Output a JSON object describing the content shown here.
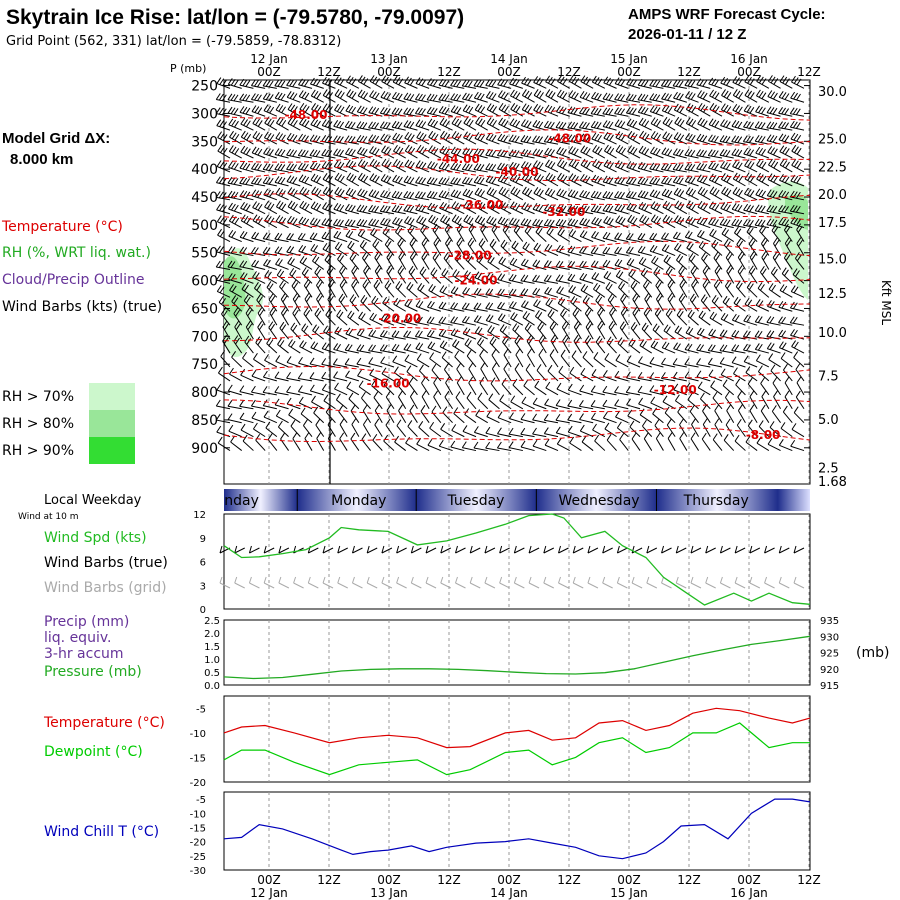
{
  "header": {
    "title": "Skytrain Ice Rise:  lat/lon = (-79.5780, -79.0097)",
    "grid_point": "Grid Point (562, 331) lat/lon = (-79.5859, -78.8312)",
    "cycle_line1": "AMPS WRF Forecast Cycle:",
    "cycle_line2": "2026-01-11 / 12  Z"
  },
  "model_grid": {
    "label": "Model Grid ΔX:",
    "value": "8.000 km"
  },
  "colors": {
    "temperature": "#dd0000",
    "rh": "#22aa22",
    "cloud": "#663399",
    "barbs": "#000000",
    "grid_barbs": "#aaaaaa",
    "wind_speed": "#22bb22",
    "dewpoint": "#00cc00",
    "pressure": "#22aa22",
    "wind_chill": "#0000bb",
    "rh70": "#ccf7cc",
    "rh80": "#99e699",
    "rh90": "#33dd33",
    "day_bar": "#1f2e8c",
    "grid_line": "#999999"
  },
  "time_axis": {
    "dates": [
      "12 Jan",
      "13 Jan",
      "14 Jan",
      "15 Jan",
      "16 Jan"
    ],
    "labels": [
      "00Z",
      "12Z",
      "00Z",
      "12Z",
      "00Z",
      "12Z",
      "00Z",
      "12Z",
      "00Z",
      "12Z"
    ],
    "weekday_label": "Local Weekday",
    "weekdays": [
      "nday",
      "Monday",
      "Tuesday",
      "Wednesday",
      "Thursday"
    ]
  },
  "chart_data": [
    {
      "type": "line",
      "panel": "upper_air",
      "ylabel": "P (mb)",
      "right_label": "Kft MSL",
      "pressure_ticks": [
        250,
        300,
        350,
        400,
        450,
        500,
        550,
        600,
        650,
        700,
        750,
        800,
        850,
        900
      ],
      "height_ticks": [
        {
          "p": 260,
          "label": "30.0"
        },
        {
          "p": 345,
          "label": "25.0"
        },
        {
          "p": 395,
          "label": "22.5"
        },
        {
          "p": 445,
          "label": "20.0"
        },
        {
          "p": 495,
          "label": "17.5"
        },
        {
          "p": 560,
          "label": "15.0"
        },
        {
          "p": 622,
          "label": "12.5"
        },
        {
          "p": 692,
          "label": "10.0"
        },
        {
          "p": 770,
          "label": "7.5"
        },
        {
          "p": 848,
          "label": "5.0"
        },
        {
          "p": 935,
          "label": "2.5"
        },
        {
          "p": 960,
          "label": "1.68"
        }
      ],
      "legend": [
        {
          "label": "Temperature (°C)",
          "color": "#dd0000"
        },
        {
          "label": "RH (%, WRT liq. wat.)",
          "color": "#22aa22"
        },
        {
          "label": "Cloud/Precip Outline",
          "color": "#663399"
        },
        {
          "label": "Wind Barbs (kts) (true)",
          "color": "#000000"
        }
      ],
      "rh_legend": [
        "RH > 70%",
        "RH > 80%",
        "RH > 90%"
      ],
      "isotherm_labels": [
        {
          "text": "-48.00",
          "t": 0.14,
          "p": 303
        },
        {
          "text": "-48.00",
          "t": 0.59,
          "p": 345
        },
        {
          "text": "-44.00",
          "t": 0.4,
          "p": 382
        },
        {
          "text": "-40.00",
          "t": 0.5,
          "p": 405
        },
        {
          "text": "-36.00",
          "t": 0.44,
          "p": 464
        },
        {
          "text": "-32.00",
          "t": 0.58,
          "p": 477
        },
        {
          "text": "-28.00",
          "t": 0.42,
          "p": 555
        },
        {
          "text": "-24.00",
          "t": 0.43,
          "p": 600
        },
        {
          "text": "-20.00",
          "t": 0.3,
          "p": 668
        },
        {
          "text": "-16.00",
          "t": 0.28,
          "p": 785
        },
        {
          "text": "-12.00",
          "t": 0.77,
          "p": 796
        },
        {
          "text": "-8.00",
          "t": 0.92,
          "p": 877
        }
      ]
    },
    {
      "type": "line",
      "panel": "surface_wind",
      "note": "Wind at 10 m",
      "ylim": [
        0,
        12
      ],
      "yticks": [
        0,
        3,
        6,
        9,
        12
      ],
      "legend": [
        "Wind Spd (kts)",
        "Wind Barbs (true)",
        "Wind Barbs (grid)"
      ],
      "t": [
        0,
        0.03,
        0.06,
        0.1,
        0.14,
        0.18,
        0.2,
        0.23,
        0.28,
        0.33,
        0.38,
        0.43,
        0.48,
        0.52,
        0.56,
        0.58,
        0.61,
        0.65,
        0.68,
        0.72,
        0.75,
        0.79,
        0.82,
        0.87,
        0.9,
        0.93,
        0.97,
        1
      ],
      "values": [
        8.0,
        6.5,
        6.6,
        7.0,
        7.5,
        9.0,
        10.3,
        10.0,
        9.8,
        8.1,
        8.6,
        9.6,
        10.7,
        11.8,
        12.0,
        11.5,
        9.0,
        9.8,
        8.0,
        6.5,
        4.0,
        2.0,
        0.5,
        2.0,
        1.0,
        2.0,
        0.8,
        0.6
      ]
    },
    {
      "type": "line",
      "panel": "pressure",
      "legend": [
        "Precip (mm)",
        "liq. equiv.",
        "3-hr accum",
        "Pressure (mb)"
      ],
      "precip_ticks": [
        "2.5",
        "2.0",
        "1.5",
        "1.0",
        "0.5",
        "0.0"
      ],
      "precip_values": [
        2.5,
        2.0,
        1.5,
        1.0,
        0.5,
        0.0
      ],
      "pressure_ticks": [
        "935",
        "930",
        "925",
        "920",
        "915"
      ],
      "pressure_values": [
        935,
        930,
        925,
        920,
        915
      ],
      "right_unit": "(mb)",
      "t": [
        0,
        0.05,
        0.1,
        0.15,
        0.2,
        0.25,
        0.3,
        0.35,
        0.4,
        0.45,
        0.5,
        0.55,
        0.6,
        0.65,
        0.7,
        0.75,
        0.8,
        0.85,
        0.9,
        0.95,
        1
      ],
      "values": [
        917.5,
        917.0,
        917.3,
        918.3,
        919.3,
        919.8,
        920.0,
        920.0,
        919.8,
        919.4,
        918.9,
        918.5,
        918.4,
        918.8,
        920.0,
        922.0,
        924.0,
        925.8,
        927.5,
        928.7,
        930.0
      ]
    },
    {
      "type": "line",
      "panel": "temperature",
      "ylim": [
        -20,
        -2.5
      ],
      "yticks": [
        -5,
        -10,
        -15,
        -20
      ],
      "series": [
        {
          "name": "Temperature (°C)",
          "t": [
            0,
            0.03,
            0.07,
            0.12,
            0.18,
            0.23,
            0.28,
            0.33,
            0.38,
            0.42,
            0.48,
            0.52,
            0.56,
            0.6,
            0.64,
            0.68,
            0.72,
            0.76,
            0.8,
            0.84,
            0.88,
            0.93,
            0.97,
            1
          ],
          "values": [
            -10,
            -8.8,
            -8.5,
            -10.0,
            -12.0,
            -11.0,
            -10.5,
            -11.0,
            -13.0,
            -12.8,
            -10.0,
            -9.5,
            -11.5,
            -11.0,
            -8.0,
            -7.5,
            -9.5,
            -8.5,
            -6.0,
            -5.0,
            -5.5,
            -7.0,
            -8.0,
            -7.0
          ]
        },
        {
          "name": "Dewpoint (°C)",
          "t": [
            0,
            0.03,
            0.07,
            0.12,
            0.18,
            0.23,
            0.28,
            0.33,
            0.38,
            0.42,
            0.48,
            0.52,
            0.56,
            0.6,
            0.64,
            0.68,
            0.72,
            0.76,
            0.8,
            0.84,
            0.88,
            0.93,
            0.97,
            1
          ],
          "values": [
            -15.5,
            -13.5,
            -13.5,
            -16.0,
            -18.5,
            -16.5,
            -16.0,
            -15.5,
            -18.5,
            -17.5,
            -14.0,
            -13.5,
            -16.5,
            -15.0,
            -12.0,
            -11.0,
            -14.0,
            -13.0,
            -10.0,
            -10.0,
            -8.0,
            -13.0,
            -12.0,
            -12.0
          ]
        }
      ]
    },
    {
      "type": "line",
      "panel": "wind_chill",
      "ylim": [
        -30,
        -2.5
      ],
      "yticks": [
        -5,
        -10,
        -15,
        -20,
        -25,
        -30
      ],
      "series": [
        {
          "name": "Wind Chill T (°C)",
          "t": [
            0,
            0.03,
            0.06,
            0.1,
            0.15,
            0.2,
            0.22,
            0.25,
            0.28,
            0.32,
            0.35,
            0.38,
            0.43,
            0.48,
            0.52,
            0.56,
            0.6,
            0.64,
            0.68,
            0.72,
            0.75,
            0.78,
            0.82,
            0.86,
            0.9,
            0.94,
            0.97,
            1
          ],
          "values": [
            -19,
            -18.5,
            -14,
            -15.5,
            -19,
            -23,
            -24.5,
            -23.5,
            -23,
            -21.5,
            -23.5,
            -22,
            -20.5,
            -20,
            -19,
            -20.5,
            -22,
            -25,
            -26,
            -24,
            -20,
            -14.5,
            -14,
            -19,
            -10,
            -5,
            -5,
            -6
          ]
        }
      ]
    }
  ]
}
